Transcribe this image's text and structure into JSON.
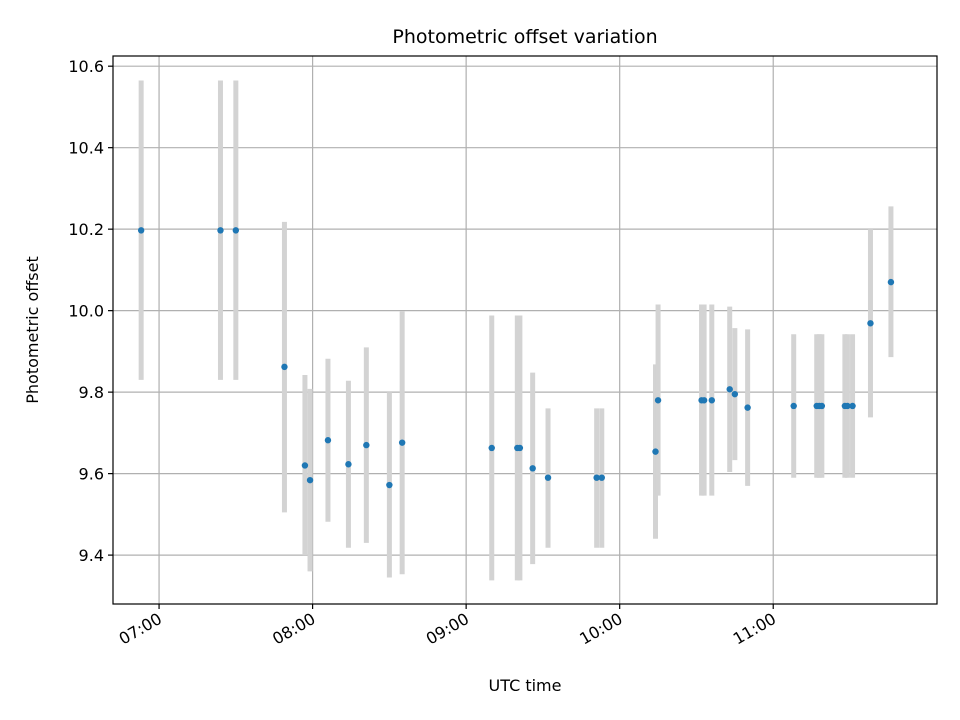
{
  "chart_data": {
    "type": "scatter",
    "title": "Photometric offset variation",
    "xlabel": "UTC time",
    "ylabel": "Photometric offset",
    "x_axis_kind": "time",
    "xlim": [
      "06:42",
      "12:04"
    ],
    "ylim": [
      9.28,
      10.625
    ],
    "x_ticks": [
      "07:00",
      "08:00",
      "09:00",
      "10:00",
      "11:00"
    ],
    "y_ticks": [
      9.4,
      9.6,
      9.8,
      10.0,
      10.2,
      10.4,
      10.6
    ],
    "grid": true,
    "colors": {
      "points": "#1f77b4",
      "errorbars": "#d3d3d3",
      "grid": "#b0b0b0"
    },
    "points": [
      {
        "x": "06:53",
        "y": 10.197,
        "ylow": 9.83,
        "yhigh": 10.565
      },
      {
        "x": "07:24",
        "y": 10.197,
        "ylow": 9.83,
        "yhigh": 10.565
      },
      {
        "x": "07:30",
        "y": 10.197,
        "ylow": 9.83,
        "yhigh": 10.565
      },
      {
        "x": "07:49",
        "y": 9.862,
        "ylow": 9.505,
        "yhigh": 10.218
      },
      {
        "x": "07:57",
        "y": 9.62,
        "ylow": 9.4,
        "yhigh": 9.842
      },
      {
        "x": "07:59",
        "y": 9.584,
        "ylow": 9.36,
        "yhigh": 9.808
      },
      {
        "x": "08:06",
        "y": 9.682,
        "ylow": 9.482,
        "yhigh": 9.882
      },
      {
        "x": "08:14",
        "y": 9.623,
        "ylow": 9.418,
        "yhigh": 9.828
      },
      {
        "x": "08:21",
        "y": 9.67,
        "ylow": 9.43,
        "yhigh": 9.91
      },
      {
        "x": "08:30",
        "y": 9.572,
        "ylow": 9.345,
        "yhigh": 9.8
      },
      {
        "x": "08:35",
        "y": 9.676,
        "ylow": 9.353,
        "yhigh": 9.998
      },
      {
        "x": "09:10",
        "y": 9.663,
        "ylow": 9.338,
        "yhigh": 9.988
      },
      {
        "x": "09:20",
        "y": 9.663,
        "ylow": 9.338,
        "yhigh": 9.988
      },
      {
        "x": "09:21",
        "y": 9.663,
        "ylow": 9.338,
        "yhigh": 9.988
      },
      {
        "x": "09:26",
        "y": 9.613,
        "ylow": 9.378,
        "yhigh": 9.848
      },
      {
        "x": "09:32",
        "y": 9.59,
        "ylow": 9.418,
        "yhigh": 9.76
      },
      {
        "x": "09:51",
        "y": 9.59,
        "ylow": 9.418,
        "yhigh": 9.76
      },
      {
        "x": "09:53",
        "y": 9.59,
        "ylow": 9.418,
        "yhigh": 9.76
      },
      {
        "x": "10:14",
        "y": 9.654,
        "ylow": 9.44,
        "yhigh": 9.868
      },
      {
        "x": "10:15",
        "y": 9.78,
        "ylow": 9.546,
        "yhigh": 10.015
      },
      {
        "x": "10:32",
        "y": 9.78,
        "ylow": 9.546,
        "yhigh": 10.015
      },
      {
        "x": "10:33",
        "y": 9.78,
        "ylow": 9.546,
        "yhigh": 10.015
      },
      {
        "x": "10:36",
        "y": 9.78,
        "ylow": 9.546,
        "yhigh": 10.015
      },
      {
        "x": "10:43",
        "y": 9.807,
        "ylow": 9.604,
        "yhigh": 10.01
      },
      {
        "x": "10:45",
        "y": 9.795,
        "ylow": 9.633,
        "yhigh": 9.957
      },
      {
        "x": "10:50",
        "y": 9.762,
        "ylow": 9.57,
        "yhigh": 9.954
      },
      {
        "x": "11:08",
        "y": 9.766,
        "ylow": 9.59,
        "yhigh": 9.942
      },
      {
        "x": "11:17",
        "y": 9.766,
        "ylow": 9.59,
        "yhigh": 9.942
      },
      {
        "x": "11:18",
        "y": 9.766,
        "ylow": 9.59,
        "yhigh": 9.942
      },
      {
        "x": "11:19",
        "y": 9.766,
        "ylow": 9.59,
        "yhigh": 9.942
      },
      {
        "x": "11:28",
        "y": 9.766,
        "ylow": 9.59,
        "yhigh": 9.942
      },
      {
        "x": "11:29",
        "y": 9.766,
        "ylow": 9.59,
        "yhigh": 9.942
      },
      {
        "x": "11:31",
        "y": 9.766,
        "ylow": 9.59,
        "yhigh": 9.942
      },
      {
        "x": "11:38",
        "y": 9.969,
        "ylow": 9.738,
        "yhigh": 10.2
      },
      {
        "x": "11:46",
        "y": 10.07,
        "ylow": 9.886,
        "yhigh": 10.256
      }
    ]
  }
}
